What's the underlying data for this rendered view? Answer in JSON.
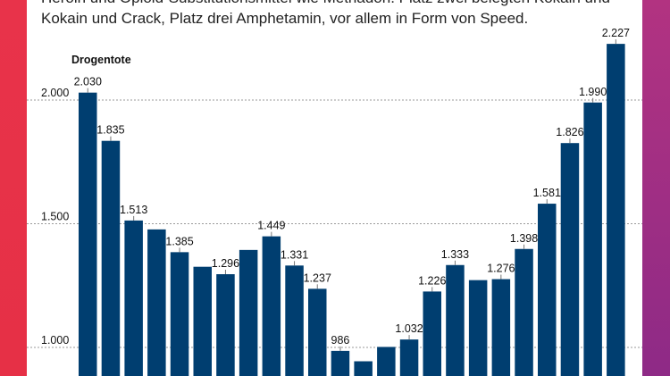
{
  "intro": {
    "line1": "Heroin und Opioid-Substitutionsmittel wie Methadon. Platz zwei belegten Kokain und",
    "line2": "Kokain und Crack, Platz drei Amphetamin, vor allem in Form von Speed."
  },
  "chart_data": {
    "type": "bar",
    "ylabel": "Drogentote",
    "ylim": [
      950,
      2250
    ],
    "yticks": [
      1000,
      1500,
      2000
    ],
    "ytick_labels": [
      "1.000",
      "1.500",
      "2.000"
    ],
    "grid": true,
    "bar_color": "#003e70",
    "bars": [
      {
        "value": 2030,
        "label": "2.030"
      },
      {
        "value": 1835,
        "label": "1.835"
      },
      {
        "value": 1513,
        "label": "1.513"
      },
      {
        "value": 1477,
        "label": ""
      },
      {
        "value": 1385,
        "label": "1.385"
      },
      {
        "value": 1326,
        "label": ""
      },
      {
        "value": 1296,
        "label": "1.296"
      },
      {
        "value": 1394,
        "label": ""
      },
      {
        "value": 1449,
        "label": "1.449"
      },
      {
        "value": 1331,
        "label": "1.331"
      },
      {
        "value": 1237,
        "label": "1.237"
      },
      {
        "value": 986,
        "label": "986"
      },
      {
        "value": 944,
        "label": ""
      },
      {
        "value": 1002,
        "label": ""
      },
      {
        "value": 1032,
        "label": "1.032"
      },
      {
        "value": 1226,
        "label": "1.226"
      },
      {
        "value": 1333,
        "label": "1.333"
      },
      {
        "value": 1272,
        "label": ""
      },
      {
        "value": 1276,
        "label": "1.276"
      },
      {
        "value": 1398,
        "label": "1.398"
      },
      {
        "value": 1581,
        "label": "1.581"
      },
      {
        "value": 1826,
        "label": "1.826"
      },
      {
        "value": 1990,
        "label": "1.990"
      },
      {
        "value": 2227,
        "label": "2.227"
      }
    ]
  }
}
